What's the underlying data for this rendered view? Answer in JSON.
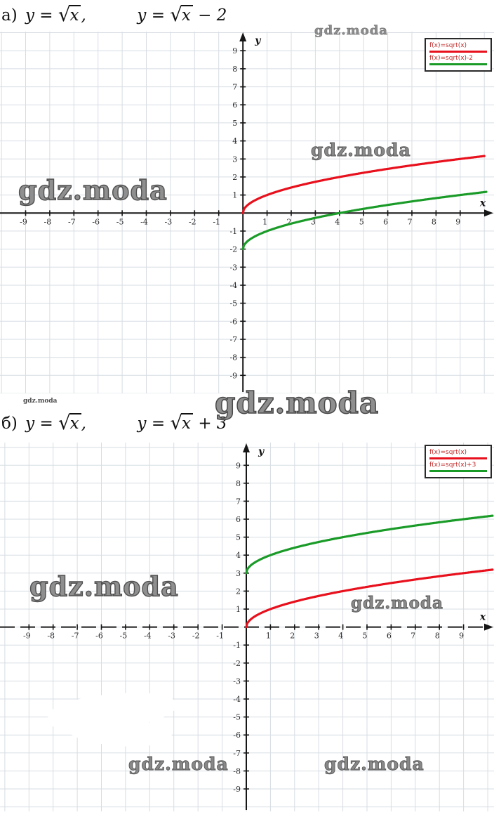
{
  "watermark": {
    "text": "gdz.moda"
  },
  "titles": {
    "a": {
      "index": "а)",
      "eq1": {
        "pre": "y = ",
        "rad": "x",
        "post": ","
      },
      "eq2": {
        "pre": "y = ",
        "rad": "x",
        "post": " − 2"
      }
    },
    "b": {
      "index": "б)",
      "eq1": {
        "pre": "y = ",
        "rad": "x",
        "post": ","
      },
      "eq2": {
        "pre": "y = ",
        "rad": "x",
        "post": " + 3"
      }
    }
  },
  "chart_data": [
    {
      "type": "line",
      "title": "а) y = √x,  y = √x − 2",
      "xlabel": "x",
      "ylabel": "y",
      "xlim": [
        -10.06,
        10.4
      ],
      "ylim": [
        -10.0,
        10.06
      ],
      "xticks": [
        -9,
        -8,
        -7,
        -6,
        -5,
        -4,
        -3,
        -2,
        -1,
        1,
        2,
        3,
        4,
        5,
        6,
        7,
        8,
        9
      ],
      "yticks": [
        -9,
        -8,
        -7,
        -6,
        -5,
        -4,
        -3,
        -2,
        -1,
        1,
        2,
        3,
        4,
        5,
        6,
        7,
        8,
        9
      ],
      "grid": true,
      "grid_color": "#d7dde3",
      "axis_color": "#161616",
      "x_axis_style": "solid",
      "legend_position": "top-right",
      "legend_text_color": "#c22b2b",
      "series": [
        {
          "name": "f(x)=sqrt(x)",
          "color": "#e8101c",
          "fn": "sqrt",
          "offset": 0,
          "x_start": 0,
          "x_end": 10.0,
          "points": [
            [
              0,
              0
            ],
            [
              1,
              1
            ],
            [
              2,
              1.41
            ],
            [
              3,
              1.73
            ],
            [
              4,
              2
            ],
            [
              5,
              2.24
            ],
            [
              6,
              2.45
            ],
            [
              7,
              2.65
            ],
            [
              8,
              2.83
            ],
            [
              9,
              3
            ],
            [
              10,
              3.16
            ]
          ]
        },
        {
          "name": "f(x)=sqrt(x)-2",
          "color": "#1a9b28",
          "fn": "sqrt",
          "offset": -2,
          "x_start": 0,
          "x_end": 10.1,
          "points": [
            [
              0,
              -2
            ],
            [
              1,
              -1
            ],
            [
              2,
              -0.59
            ],
            [
              3,
              -0.27
            ],
            [
              4,
              0
            ],
            [
              5,
              0.24
            ],
            [
              6,
              0.45
            ],
            [
              7,
              0.65
            ],
            [
              8,
              0.83
            ],
            [
              9,
              1
            ],
            [
              10,
              1.16
            ]
          ]
        }
      ]
    },
    {
      "type": "line",
      "title": "б) y = √x,  y = √x + 3",
      "xlabel": "x",
      "ylabel": "y",
      "xlim": [
        -10.2,
        10.26
      ],
      "ylim": [
        -10.25,
        10.26
      ],
      "xticks": [
        -9,
        -8,
        -7,
        -6,
        -5,
        -4,
        -3,
        -2,
        -1,
        1,
        2,
        3,
        4,
        5,
        6,
        7,
        8,
        9
      ],
      "yticks": [
        -9,
        -8,
        -7,
        -6,
        -5,
        -4,
        -3,
        -2,
        -1,
        1,
        2,
        3,
        4,
        5,
        6,
        7,
        8,
        9
      ],
      "grid": true,
      "grid_color": "#d7dde3",
      "axis_color": "#161616",
      "x_axis_style": "dashed",
      "legend_position": "top-right",
      "legend_text_color": "#c22b2b",
      "series": [
        {
          "name": "f(x)=sqrt(x)",
          "color": "#e8101c",
          "fn": "sqrt",
          "offset": 0,
          "x_start": 0,
          "x_end": 10.2,
          "points": [
            [
              0,
              0
            ],
            [
              1,
              1
            ],
            [
              2,
              1.41
            ],
            [
              3,
              1.73
            ],
            [
              4,
              2
            ],
            [
              5,
              2.24
            ],
            [
              6,
              2.45
            ],
            [
              7,
              2.65
            ],
            [
              8,
              2.83
            ],
            [
              9,
              3
            ],
            [
              10,
              3.16
            ]
          ]
        },
        {
          "name": "f(x)=sqrt(x)+3",
          "color": "#1a9b28",
          "fn": "sqrt",
          "offset": 3,
          "x_start": 0,
          "x_end": 10.2,
          "points": [
            [
              0,
              3
            ],
            [
              1,
              4
            ],
            [
              2,
              4.41
            ],
            [
              3,
              4.73
            ],
            [
              4,
              5
            ],
            [
              5,
              5.24
            ],
            [
              6,
              5.45
            ],
            [
              7,
              5.65
            ],
            [
              8,
              5.83
            ],
            [
              9,
              6
            ],
            [
              10,
              6.16
            ]
          ]
        }
      ]
    }
  ]
}
